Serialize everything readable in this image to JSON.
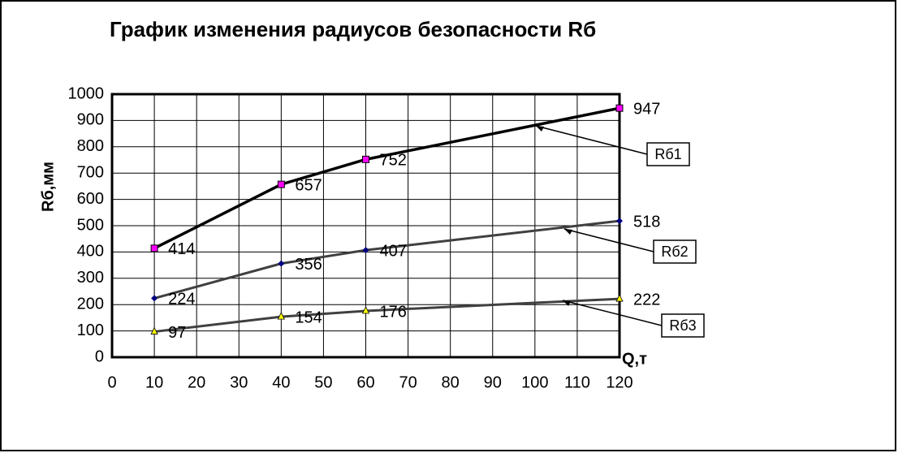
{
  "chart_data": {
    "type": "line",
    "title": "График изменения радиусов безопасности Rб",
    "x_label": "Q,т",
    "y_label": "Rб,мм",
    "x": [
      10,
      40,
      60,
      120
    ],
    "series": [
      {
        "name": "Rб1",
        "color": "#000000",
        "marker_color": "#ff00ff",
        "marker": "square",
        "values": [
          414,
          657,
          752,
          947
        ]
      },
      {
        "name": "Rб2",
        "color": "#404040",
        "marker_color": "#000080",
        "marker": "diamond",
        "values": [
          224,
          356,
          407,
          518
        ]
      },
      {
        "name": "Rб3",
        "color": "#404040",
        "marker_color": "#ffff00",
        "marker": "triangle",
        "values": [
          97,
          154,
          176,
          222
        ]
      }
    ],
    "xlim": [
      0,
      120
    ],
    "xticks": [
      0,
      10,
      20,
      30,
      40,
      50,
      60,
      70,
      80,
      90,
      100,
      110,
      120
    ],
    "ylim": [
      0,
      1000
    ],
    "yticks": [
      0,
      100,
      200,
      300,
      400,
      500,
      600,
      700,
      800,
      900,
      1000
    ],
    "grid": true
  }
}
